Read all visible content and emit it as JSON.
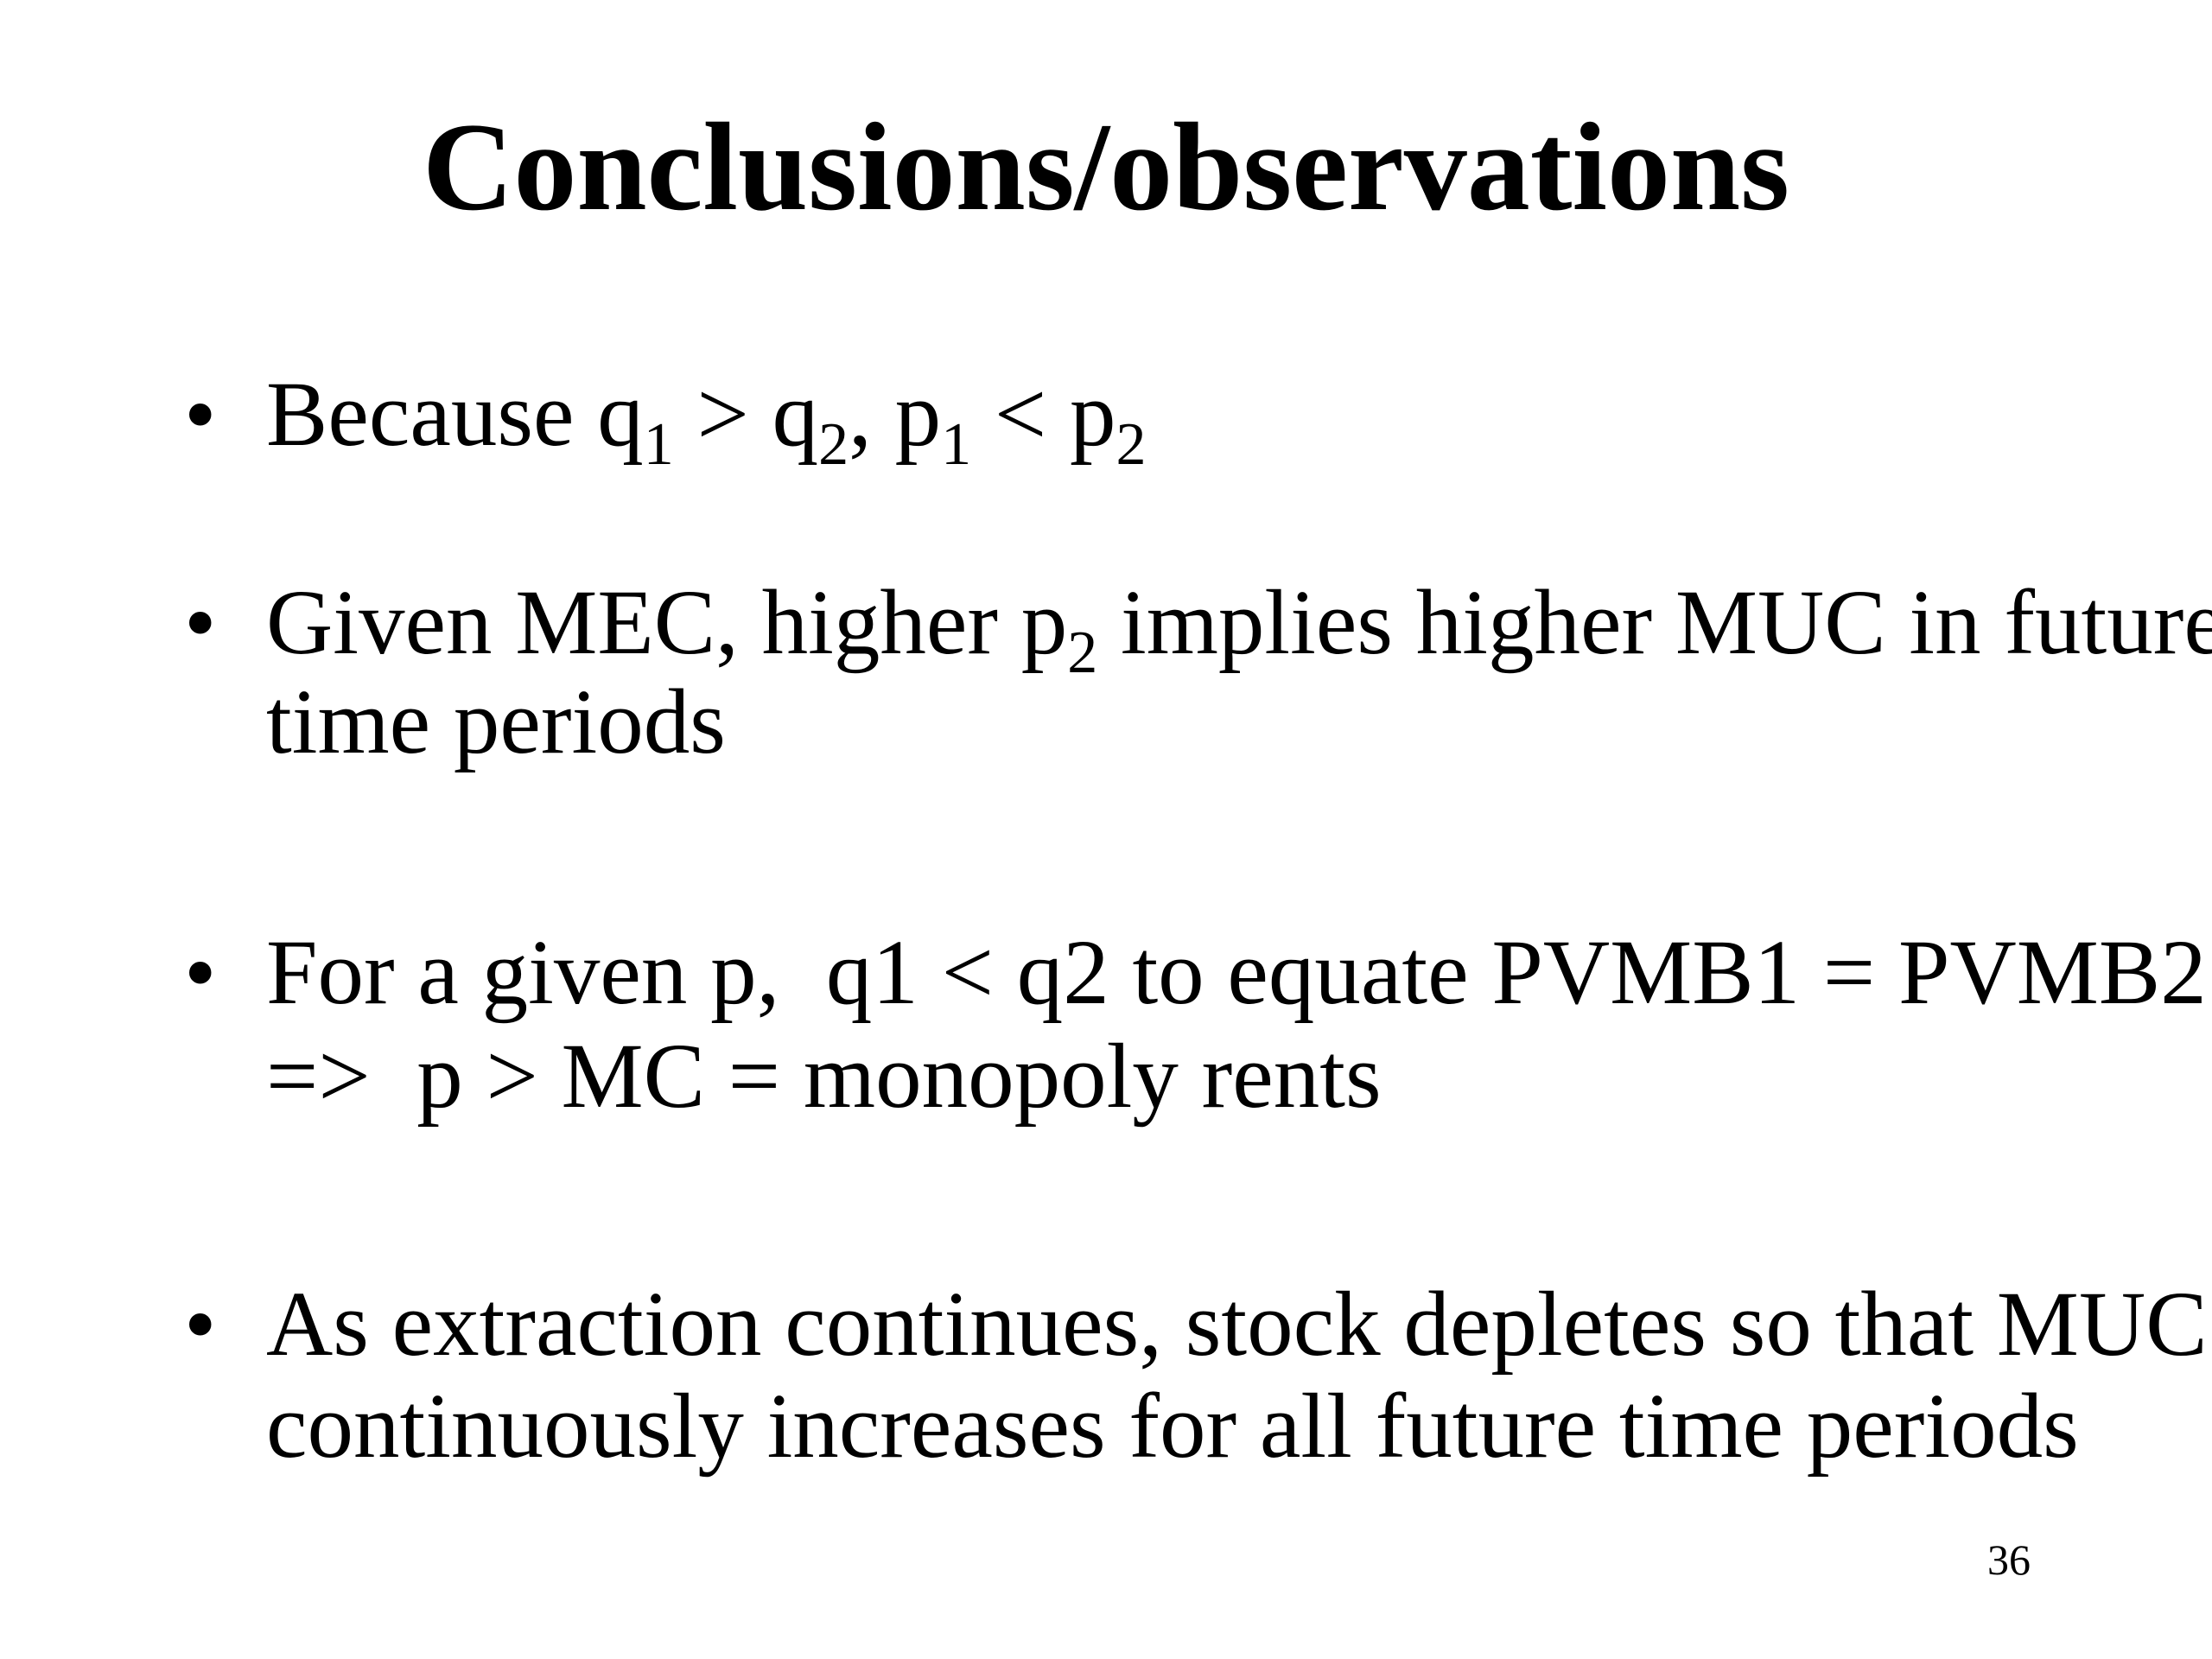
{
  "slide": {
    "title": "Conclusions/observations",
    "bullets": [
      {
        "lines": [
          {
            "runs": [
              {
                "text": "Because q"
              },
              {
                "text": "1",
                "sub": true
              },
              {
                "text": " > q"
              },
              {
                "text": "2",
                "sub": true
              },
              {
                "text": ", p"
              },
              {
                "text": "1",
                "sub": true
              },
              {
                "text": " < p"
              },
              {
                "text": "2",
                "sub": true
              }
            ]
          }
        ]
      },
      {
        "lines": [
          {
            "runs": [
              {
                "text": "Given MEC, higher p"
              },
              {
                "text": "2",
                "sub": true
              },
              {
                "text": " implies higher MUC in future"
              }
            ]
          },
          {
            "runs": [
              {
                "text": "time periods"
              }
            ]
          }
        ]
      },
      {
        "lines": [
          {
            "runs": [
              {
                "text": "For a given p,  q1 < q2 to equate PVMB1 = PVMB2"
              }
            ]
          },
          {
            "runs": [
              {
                "text": "=>  p > MC = monopoly rents"
              }
            ]
          }
        ]
      },
      {
        "lines": [
          {
            "runs": [
              {
                "text": "As extraction continues, stock depletes so that MUC"
              }
            ]
          },
          {
            "runs": [
              {
                "text": "continuously increases for all future time periods"
              }
            ]
          }
        ]
      }
    ],
    "page_number": "36"
  }
}
